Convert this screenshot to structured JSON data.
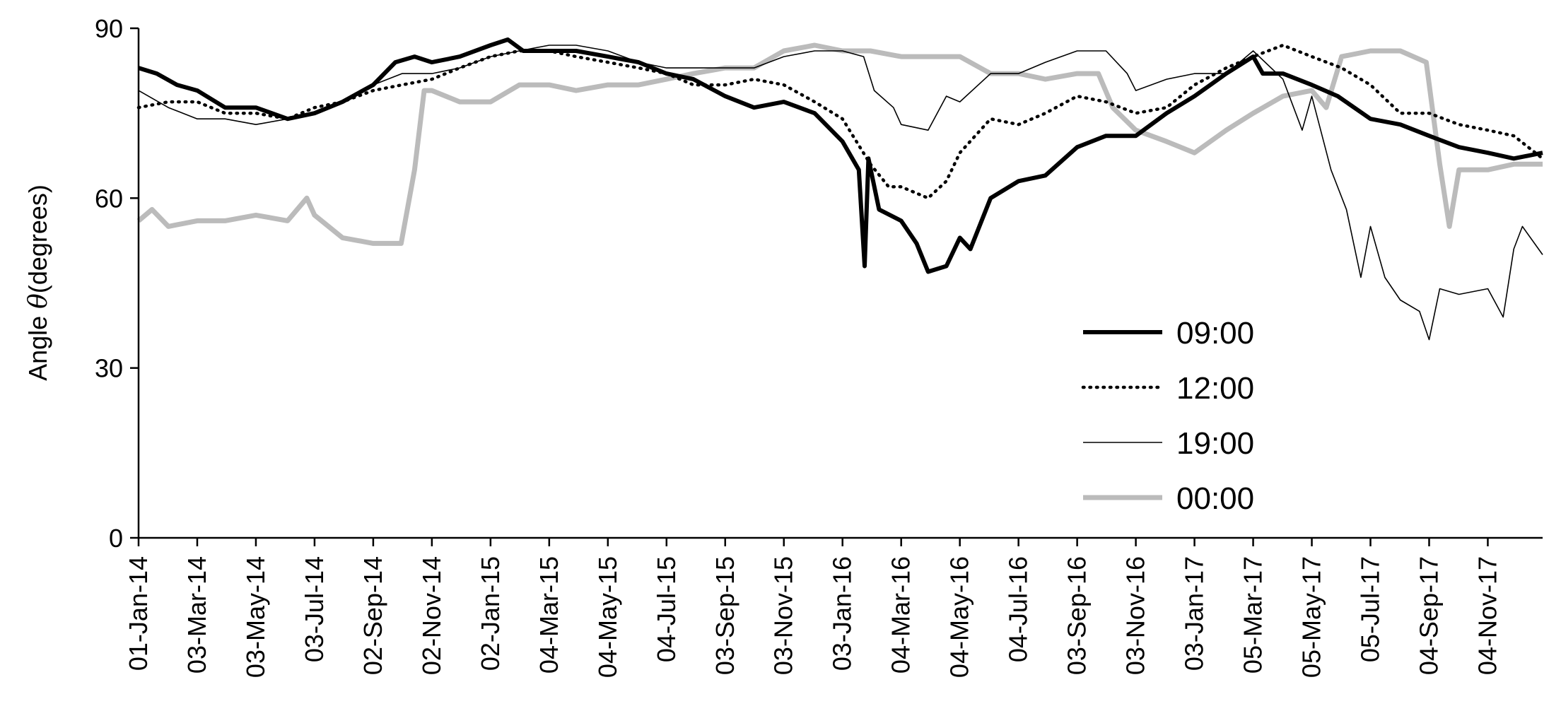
{
  "chart_data": {
    "type": "line",
    "ylabel_prefix": "Angle ",
    "ylabel_symbol": "θ",
    "ylabel_suffix": "(degrees)",
    "ylim": [
      0,
      90
    ],
    "yticks": [
      0,
      30,
      60,
      90
    ],
    "xlim": [
      "2014-01-01",
      "2017-12-31"
    ],
    "xticks": [
      {
        "date": "2014-01-01",
        "label": "01-Jan-14"
      },
      {
        "date": "2014-03-03",
        "label": "03-Mar-14"
      },
      {
        "date": "2014-05-03",
        "label": "03-May-14"
      },
      {
        "date": "2014-07-03",
        "label": "03-Jul-14"
      },
      {
        "date": "2014-09-02",
        "label": "02-Sep-14"
      },
      {
        "date": "2014-11-02",
        "label": "02-Nov-14"
      },
      {
        "date": "2015-01-02",
        "label": "02-Jan-15"
      },
      {
        "date": "2015-03-04",
        "label": "04-Mar-15"
      },
      {
        "date": "2015-05-04",
        "label": "04-May-15"
      },
      {
        "date": "2015-07-04",
        "label": "04-Jul-15"
      },
      {
        "date": "2015-09-03",
        "label": "03-Sep-15"
      },
      {
        "date": "2015-11-03",
        "label": "03-Nov-15"
      },
      {
        "date": "2016-01-03",
        "label": "03-Jan-16"
      },
      {
        "date": "2016-03-04",
        "label": "04-Mar-16"
      },
      {
        "date": "2016-05-04",
        "label": "04-May-16"
      },
      {
        "date": "2016-07-04",
        "label": "04-Jul-16"
      },
      {
        "date": "2016-09-03",
        "label": "03-Sep-16"
      },
      {
        "date": "2016-11-03",
        "label": "03-Nov-16"
      },
      {
        "date": "2017-01-03",
        "label": "03-Jan-17"
      },
      {
        "date": "2017-03-05",
        "label": "05-Mar-17"
      },
      {
        "date": "2017-05-05",
        "label": "05-May-17"
      },
      {
        "date": "2017-07-05",
        "label": "05-Jul-17"
      },
      {
        "date": "2017-09-04",
        "label": "04-Sep-17"
      },
      {
        "date": "2017-11-04",
        "label": "04-Nov-17"
      }
    ],
    "grid": false,
    "legend_position": "lower-right",
    "series": [
      {
        "name": "09:00",
        "style": "solid-thick",
        "color": "#000000",
        "points": [
          [
            "2014-01-01",
            83
          ],
          [
            "2014-01-20",
            82
          ],
          [
            "2014-02-10",
            80
          ],
          [
            "2014-03-03",
            79
          ],
          [
            "2014-04-01",
            76
          ],
          [
            "2014-05-03",
            76
          ],
          [
            "2014-06-05",
            74
          ],
          [
            "2014-07-03",
            75
          ],
          [
            "2014-08-01",
            77
          ],
          [
            "2014-09-02",
            80
          ],
          [
            "2014-09-25",
            84
          ],
          [
            "2014-10-15",
            85
          ],
          [
            "2014-11-02",
            84
          ],
          [
            "2014-12-01",
            85
          ],
          [
            "2015-01-02",
            87
          ],
          [
            "2015-01-20",
            88
          ],
          [
            "2015-02-05",
            86
          ],
          [
            "2015-03-04",
            86
          ],
          [
            "2015-04-01",
            86
          ],
          [
            "2015-05-04",
            85
          ],
          [
            "2015-06-05",
            84
          ],
          [
            "2015-07-04",
            82
          ],
          [
            "2015-08-01",
            81
          ],
          [
            "2015-09-03",
            78
          ],
          [
            "2015-10-03",
            76
          ],
          [
            "2015-11-03",
            77
          ],
          [
            "2015-12-05",
            75
          ],
          [
            "2016-01-03",
            70
          ],
          [
            "2016-01-20",
            65
          ],
          [
            "2016-01-26",
            48
          ],
          [
            "2016-01-30",
            67
          ],
          [
            "2016-02-10",
            58
          ],
          [
            "2016-03-04",
            56
          ],
          [
            "2016-03-20",
            52
          ],
          [
            "2016-04-01",
            47
          ],
          [
            "2016-04-20",
            48
          ],
          [
            "2016-05-04",
            53
          ],
          [
            "2016-05-15",
            51
          ],
          [
            "2016-06-05",
            60
          ],
          [
            "2016-07-04",
            63
          ],
          [
            "2016-08-01",
            64
          ],
          [
            "2016-09-03",
            69
          ],
          [
            "2016-10-03",
            71
          ],
          [
            "2016-11-03",
            71
          ],
          [
            "2016-12-05",
            75
          ],
          [
            "2017-01-03",
            78
          ],
          [
            "2017-02-05",
            82
          ],
          [
            "2017-03-05",
            85
          ],
          [
            "2017-03-15",
            82
          ],
          [
            "2017-04-05",
            82
          ],
          [
            "2017-05-05",
            80
          ],
          [
            "2017-06-01",
            78
          ],
          [
            "2017-07-05",
            74
          ],
          [
            "2017-08-05",
            73
          ],
          [
            "2017-09-04",
            71
          ],
          [
            "2017-10-05",
            69
          ],
          [
            "2017-11-04",
            68
          ],
          [
            "2017-12-01",
            67
          ],
          [
            "2017-12-31",
            68
          ]
        ]
      },
      {
        "name": "12:00",
        "style": "dotted",
        "color": "#000000",
        "points": [
          [
            "2014-01-01",
            76
          ],
          [
            "2014-02-01",
            77
          ],
          [
            "2014-03-03",
            77
          ],
          [
            "2014-04-01",
            75
          ],
          [
            "2014-05-03",
            75
          ],
          [
            "2014-06-05",
            74
          ],
          [
            "2014-07-03",
            76
          ],
          [
            "2014-08-01",
            77
          ],
          [
            "2014-09-02",
            79
          ],
          [
            "2014-10-02",
            80
          ],
          [
            "2014-11-02",
            81
          ],
          [
            "2014-12-01",
            83
          ],
          [
            "2015-01-02",
            85
          ],
          [
            "2015-02-01",
            86
          ],
          [
            "2015-03-04",
            86
          ],
          [
            "2015-04-01",
            85
          ],
          [
            "2015-05-04",
            84
          ],
          [
            "2015-06-05",
            83
          ],
          [
            "2015-07-04",
            82
          ],
          [
            "2015-08-01",
            80
          ],
          [
            "2015-09-03",
            80
          ],
          [
            "2015-10-03",
            81
          ],
          [
            "2015-11-03",
            80
          ],
          [
            "2015-12-05",
            77
          ],
          [
            "2016-01-03",
            74
          ],
          [
            "2016-02-01",
            66
          ],
          [
            "2016-02-20",
            62
          ],
          [
            "2016-03-04",
            62
          ],
          [
            "2016-04-01",
            60
          ],
          [
            "2016-04-20",
            63
          ],
          [
            "2016-05-04",
            68
          ],
          [
            "2016-06-05",
            74
          ],
          [
            "2016-07-04",
            73
          ],
          [
            "2016-08-01",
            75
          ],
          [
            "2016-09-03",
            78
          ],
          [
            "2016-10-03",
            77
          ],
          [
            "2016-11-03",
            75
          ],
          [
            "2016-12-05",
            76
          ],
          [
            "2017-01-03",
            80
          ],
          [
            "2017-02-05",
            83
          ],
          [
            "2017-03-05",
            85
          ],
          [
            "2017-04-05",
            87
          ],
          [
            "2017-05-05",
            85
          ],
          [
            "2017-06-05",
            83
          ],
          [
            "2017-07-05",
            80
          ],
          [
            "2017-08-05",
            75
          ],
          [
            "2017-09-04",
            75
          ],
          [
            "2017-10-05",
            73
          ],
          [
            "2017-11-04",
            72
          ],
          [
            "2017-12-01",
            71
          ],
          [
            "2017-12-31",
            67
          ]
        ]
      },
      {
        "name": "19:00",
        "style": "solid-thin",
        "color": "#000000",
        "points": [
          [
            "2014-01-01",
            79
          ],
          [
            "2014-02-01",
            76
          ],
          [
            "2014-03-03",
            74
          ],
          [
            "2014-04-01",
            74
          ],
          [
            "2014-05-03",
            73
          ],
          [
            "2014-06-05",
            74
          ],
          [
            "2014-07-03",
            75
          ],
          [
            "2014-08-01",
            77
          ],
          [
            "2014-09-02",
            80
          ],
          [
            "2014-10-02",
            82
          ],
          [
            "2014-11-02",
            82
          ],
          [
            "2014-12-01",
            83
          ],
          [
            "2015-01-02",
            85
          ],
          [
            "2015-02-01",
            86
          ],
          [
            "2015-03-04",
            87
          ],
          [
            "2015-04-01",
            87
          ],
          [
            "2015-05-04",
            86
          ],
          [
            "2015-06-05",
            84
          ],
          [
            "2015-07-04",
            83
          ],
          [
            "2015-08-01",
            83
          ],
          [
            "2015-09-03",
            83
          ],
          [
            "2015-10-03",
            83
          ],
          [
            "2015-11-03",
            85
          ],
          [
            "2015-12-05",
            86
          ],
          [
            "2016-01-03",
            86
          ],
          [
            "2016-01-25",
            85
          ],
          [
            "2016-02-05",
            79
          ],
          [
            "2016-02-25",
            76
          ],
          [
            "2016-03-04",
            73
          ],
          [
            "2016-04-01",
            72
          ],
          [
            "2016-04-20",
            78
          ],
          [
            "2016-05-04",
            77
          ],
          [
            "2016-06-05",
            82
          ],
          [
            "2016-07-04",
            82
          ],
          [
            "2016-08-01",
            84
          ],
          [
            "2016-09-03",
            86
          ],
          [
            "2016-10-03",
            86
          ],
          [
            "2016-10-25",
            82
          ],
          [
            "2016-11-03",
            79
          ],
          [
            "2016-12-05",
            81
          ],
          [
            "2017-01-03",
            82
          ],
          [
            "2017-02-05",
            82
          ],
          [
            "2017-03-05",
            86
          ],
          [
            "2017-04-05",
            81
          ],
          [
            "2017-04-25",
            72
          ],
          [
            "2017-05-05",
            78
          ],
          [
            "2017-05-25",
            65
          ],
          [
            "2017-06-10",
            58
          ],
          [
            "2017-06-25",
            46
          ],
          [
            "2017-07-05",
            55
          ],
          [
            "2017-07-20",
            46
          ],
          [
            "2017-08-05",
            42
          ],
          [
            "2017-08-25",
            40
          ],
          [
            "2017-09-04",
            35
          ],
          [
            "2017-09-15",
            44
          ],
          [
            "2017-10-05",
            43
          ],
          [
            "2017-11-04",
            44
          ],
          [
            "2017-11-20",
            39
          ],
          [
            "2017-12-01",
            51
          ],
          [
            "2017-12-10",
            55
          ],
          [
            "2017-12-31",
            50
          ]
        ]
      },
      {
        "name": "00:00",
        "style": "solid-grey",
        "color": "#bbbbbb",
        "points": [
          [
            "2014-01-01",
            56
          ],
          [
            "2014-01-15",
            58
          ],
          [
            "2014-02-01",
            55
          ],
          [
            "2014-03-03",
            56
          ],
          [
            "2014-04-01",
            56
          ],
          [
            "2014-05-03",
            57
          ],
          [
            "2014-06-05",
            56
          ],
          [
            "2014-06-25",
            60
          ],
          [
            "2014-07-03",
            57
          ],
          [
            "2014-08-01",
            53
          ],
          [
            "2014-09-02",
            52
          ],
          [
            "2014-10-01",
            52
          ],
          [
            "2014-10-15",
            65
          ],
          [
            "2014-10-25",
            79
          ],
          [
            "2014-11-02",
            79
          ],
          [
            "2014-12-01",
            77
          ],
          [
            "2015-01-02",
            77
          ],
          [
            "2015-02-01",
            80
          ],
          [
            "2015-03-04",
            80
          ],
          [
            "2015-04-01",
            79
          ],
          [
            "2015-05-04",
            80
          ],
          [
            "2015-06-05",
            80
          ],
          [
            "2015-07-04",
            81
          ],
          [
            "2015-08-01",
            82
          ],
          [
            "2015-09-03",
            83
          ],
          [
            "2015-10-03",
            83
          ],
          [
            "2015-11-03",
            86
          ],
          [
            "2015-12-05",
            87
          ],
          [
            "2016-01-03",
            86
          ],
          [
            "2016-02-01",
            86
          ],
          [
            "2016-03-04",
            85
          ],
          [
            "2016-04-01",
            85
          ],
          [
            "2016-05-04",
            85
          ],
          [
            "2016-06-05",
            82
          ],
          [
            "2016-07-04",
            82
          ],
          [
            "2016-08-01",
            81
          ],
          [
            "2016-09-03",
            82
          ],
          [
            "2016-09-25",
            82
          ],
          [
            "2016-10-10",
            76
          ],
          [
            "2016-11-03",
            72
          ],
          [
            "2016-12-05",
            70
          ],
          [
            "2017-01-03",
            68
          ],
          [
            "2017-02-05",
            72
          ],
          [
            "2017-03-05",
            75
          ],
          [
            "2017-04-05",
            78
          ],
          [
            "2017-05-05",
            79
          ],
          [
            "2017-05-20",
            76
          ],
          [
            "2017-06-05",
            85
          ],
          [
            "2017-07-05",
            86
          ],
          [
            "2017-08-05",
            86
          ],
          [
            "2017-09-01",
            84
          ],
          [
            "2017-09-15",
            66
          ],
          [
            "2017-09-25",
            55
          ],
          [
            "2017-10-05",
            65
          ],
          [
            "2017-11-04",
            65
          ],
          [
            "2017-12-01",
            66
          ],
          [
            "2017-12-31",
            66
          ]
        ]
      }
    ]
  }
}
